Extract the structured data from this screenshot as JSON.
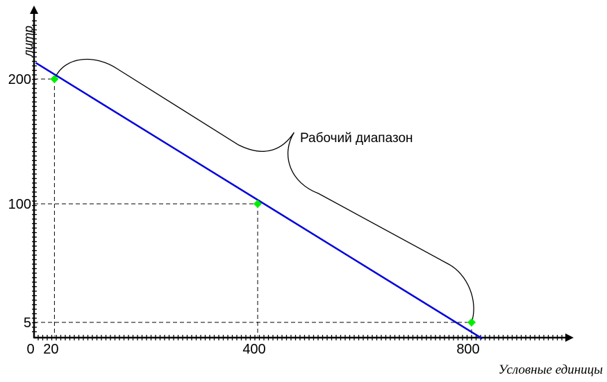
{
  "chart_data": {
    "type": "line",
    "xlabel": "Условные единицы",
    "ylabel": "литр",
    "x_ticks": [
      {
        "value": 0,
        "label": "0"
      },
      {
        "value": 20,
        "label": "20"
      },
      {
        "value": 400,
        "label": "400"
      },
      {
        "value": 800,
        "label": "800"
      }
    ],
    "y_ticks": [
      {
        "value": 5,
        "label": "5"
      },
      {
        "value": 100,
        "label": "100"
      },
      {
        "value": 200,
        "label": "200"
      }
    ],
    "series": [
      {
        "color": "#0000dd",
        "line": [
          [
            -15,
            213
          ],
          [
            820,
            -8
          ]
        ],
        "points": [
          {
            "x": 20,
            "y": 200
          },
          {
            "x": 400,
            "y": 100
          },
          {
            "x": 800,
            "y": 5
          }
        ],
        "point_color": "#00ee00"
      }
    ],
    "annotation": {
      "text": "Рабочий диапазон",
      "range": [
        20,
        800
      ]
    },
    "grid": false,
    "guide_lines": "dashed"
  }
}
